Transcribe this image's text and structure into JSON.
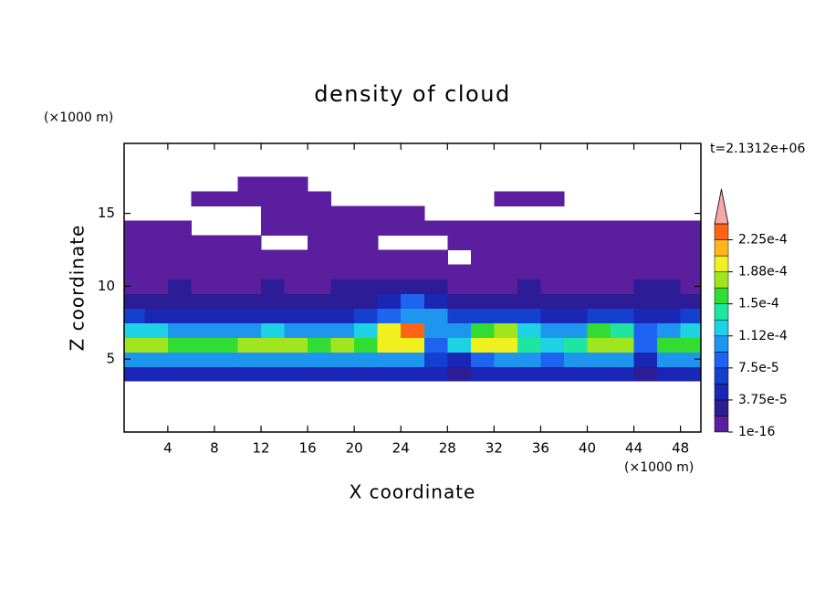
{
  "chart_data": {
    "type": "contour",
    "title": "density of cloud",
    "xlabel": "X coordinate",
    "ylabel": "Z coordinate",
    "x_unit": "(×1000 m)",
    "y_unit": "(×1000 m)",
    "time_label": "t=2.1312e+06",
    "xlim": [
      0.25,
      49.75
    ],
    "ylim": [
      0,
      19.8
    ],
    "xticks": [
      4,
      8,
      12,
      16,
      20,
      24,
      28,
      32,
      36,
      40,
      44,
      48
    ],
    "yticks": [
      5,
      10,
      15
    ],
    "x": [
      1,
      3,
      5,
      7,
      9,
      11,
      13,
      15,
      17,
      19,
      21,
      23,
      25,
      27,
      29,
      31,
      33,
      35,
      37,
      39,
      41,
      43,
      45,
      47,
      49
    ],
    "z": [
      4,
      5,
      6,
      7,
      8,
      9,
      10,
      11,
      12,
      13,
      14,
      15,
      16,
      17
    ],
    "values": [
      [
        5e-05,
        5e-05,
        5.5e-05,
        5e-05,
        5e-05,
        5.5e-05,
        5e-05,
        5e-05,
        5.5e-05,
        5e-05,
        5e-05,
        5.5e-05,
        5e-05,
        4e-05,
        3e-05,
        4e-05,
        5e-05,
        5e-05,
        5e-05,
        5e-05,
        5e-05,
        5e-05,
        3e-05,
        5e-05,
        5e-05
      ],
      [
        0.000105,
        0.0001,
        0.00011,
        0.0001,
        0.000105,
        0.00011,
        0.0001,
        0.000105,
        0.00011,
        0.000105,
        0.0001,
        0.00011,
        0.0001,
        6e-05,
        5e-05,
        9e-05,
        0.00011,
        0.0001,
        9e-05,
        0.0001,
        0.00011,
        0.000105,
        5e-05,
        0.0001,
        0.000105
      ],
      [
        0.000175,
        0.00017,
        0.000165,
        0.00016,
        0.000155,
        0.00017,
        0.000175,
        0.00017,
        0.00016,
        0.00017,
        0.000165,
        0.00019,
        0.0002,
        9e-05,
        0.00012,
        0.00019,
        0.000195,
        0.00014,
        0.00013,
        0.000135,
        0.00018,
        0.000185,
        8e-05,
        0.00015,
        0.00016
      ],
      [
        0.00013,
        0.00012,
        0.00011,
        0.000105,
        0.0001,
        0.00011,
        0.000115,
        0.00011,
        0.0001,
        0.000105,
        0.00012,
        0.00019,
        0.00023,
        0.00011,
        0.00011,
        0.00016,
        0.00018,
        0.00012,
        0.000105,
        0.00011,
        0.00015,
        0.00014,
        8e-05,
        0.00011,
        0.00013
      ],
      [
        6e-05,
        5.5e-05,
        5e-05,
        4.5e-05,
        4.5e-05,
        5e-05,
        5e-05,
        5e-05,
        4.5e-05,
        5e-05,
        6e-05,
        8e-05,
        0.000105,
        0.0001,
        6e-05,
        6e-05,
        7e-05,
        6e-05,
        5e-05,
        5e-05,
        6e-05,
        6e-05,
        5e-05,
        5e-05,
        6e-05
      ],
      [
        3e-05,
        3e-05,
        2.5e-05,
        2.5e-05,
        2.5e-05,
        3e-05,
        2.5e-05,
        2.5e-05,
        2.5e-05,
        3e-05,
        3.5e-05,
        5e-05,
        8e-05,
        5.5e-05,
        3e-05,
        3e-05,
        3.5e-05,
        3e-05,
        2.5e-05,
        2.5e-05,
        3e-05,
        3e-05,
        3e-05,
        3e-05,
        3e-05
      ],
      [
        1.5e-05,
        1.5e-05,
        2e-05,
        1.5e-05,
        1e-05,
        1.5e-05,
        2e-05,
        1.5e-05,
        1.5e-05,
        2e-05,
        2e-05,
        2e-05,
        3e-05,
        2e-05,
        1.5e-05,
        1.5e-05,
        1.5e-05,
        2e-05,
        1.5e-05,
        1.5e-05,
        1.5e-05,
        1.5e-05,
        2e-05,
        2e-05,
        1.5e-05
      ],
      [
        1e-05,
        8e-06,
        1e-05,
        8e-06,
        5e-06,
        1e-05,
        1e-05,
        8e-06,
        8e-06,
        1e-05,
        1e-05,
        8e-06,
        1e-05,
        1e-05,
        5e-06,
        8e-06,
        1e-05,
        8e-06,
        8e-06,
        8e-06,
        1e-05,
        8e-06,
        1e-05,
        1e-05,
        8e-06
      ],
      [
        4e-06,
        4e-06,
        4e-06,
        4e-06,
        4e-06,
        4e-06,
        4e-06,
        4e-06,
        4e-06,
        4e-06,
        4e-06,
        4e-06,
        4e-06,
        4e-06,
        null,
        4e-06,
        4e-06,
        4e-06,
        4e-06,
        4e-06,
        4e-06,
        4e-06,
        4e-06,
        4e-06,
        4e-06
      ],
      [
        2e-06,
        2e-06,
        2e-06,
        2e-06,
        2e-06,
        2e-06,
        null,
        null,
        2e-06,
        2e-06,
        2e-06,
        null,
        null,
        null,
        2e-06,
        2e-06,
        2e-06,
        2e-06,
        2e-06,
        2e-06,
        2e-06,
        2e-06,
        2e-06,
        2e-06,
        2e-06
      ],
      [
        1e-06,
        1e-06,
        1e-06,
        null,
        null,
        null,
        1e-06,
        1e-06,
        1e-06,
        1e-06,
        1e-06,
        1e-06,
        1e-06,
        1e-06,
        1e-06,
        1e-06,
        1e-06,
        1e-06,
        1e-06,
        1e-06,
        1e-06,
        1e-06,
        1e-06,
        1e-06,
        1e-06
      ],
      [
        null,
        null,
        null,
        null,
        null,
        null,
        1e-06,
        1e-06,
        1e-06,
        1e-06,
        1e-06,
        1e-06,
        1e-06,
        null,
        null,
        null,
        null,
        null,
        null,
        null,
        null,
        null,
        null,
        null,
        null
      ],
      [
        null,
        null,
        null,
        1e-06,
        1e-06,
        1e-06,
        1e-06,
        1e-06,
        1e-06,
        null,
        null,
        null,
        null,
        null,
        null,
        null,
        1e-06,
        1e-06,
        1e-06,
        null,
        null,
        null,
        null,
        null,
        null
      ],
      [
        null,
        null,
        null,
        null,
        null,
        1e-06,
        1e-06,
        1e-06,
        null,
        null,
        null,
        null,
        null,
        null,
        null,
        null,
        null,
        null,
        null,
        null,
        null,
        null,
        null,
        null,
        null
      ]
    ],
    "colorbar": {
      "levels": [
        1e-16,
        1.875e-05,
        3.75e-05,
        5.625e-05,
        7.5e-05,
        9.375e-05,
        0.0001125,
        0.00013125,
        0.00015,
        0.00016875,
        0.0001875,
        0.00020625,
        0.000225,
        0.00024375
      ],
      "colors": [
        "#5a1e9e",
        "#2c1c96",
        "#1a26b4",
        "#1440d0",
        "#1e64f0",
        "#1e96f0",
        "#1ed2e6",
        "#1ee6a0",
        "#32dc32",
        "#a0e61e",
        "#f0f01e",
        "#ffb41e",
        "#ff6414"
      ],
      "extend_color": "#f4a8a8",
      "ticks": [
        1e-16,
        {
          "value": 3.75e-05,
          "label": "3.75e-5"
        },
        {
          "value": 7.5e-05,
          "label": "7.5e-5"
        },
        {
          "value": 0.0001125,
          "label": "1.12e-4"
        },
        {
          "value": 0.00015,
          "label": "1.5e-4"
        },
        {
          "value": 0.0001875,
          "label": "1.88e-4"
        },
        {
          "value": 0.000225,
          "label": "2.25e-4"
        }
      ]
    }
  }
}
